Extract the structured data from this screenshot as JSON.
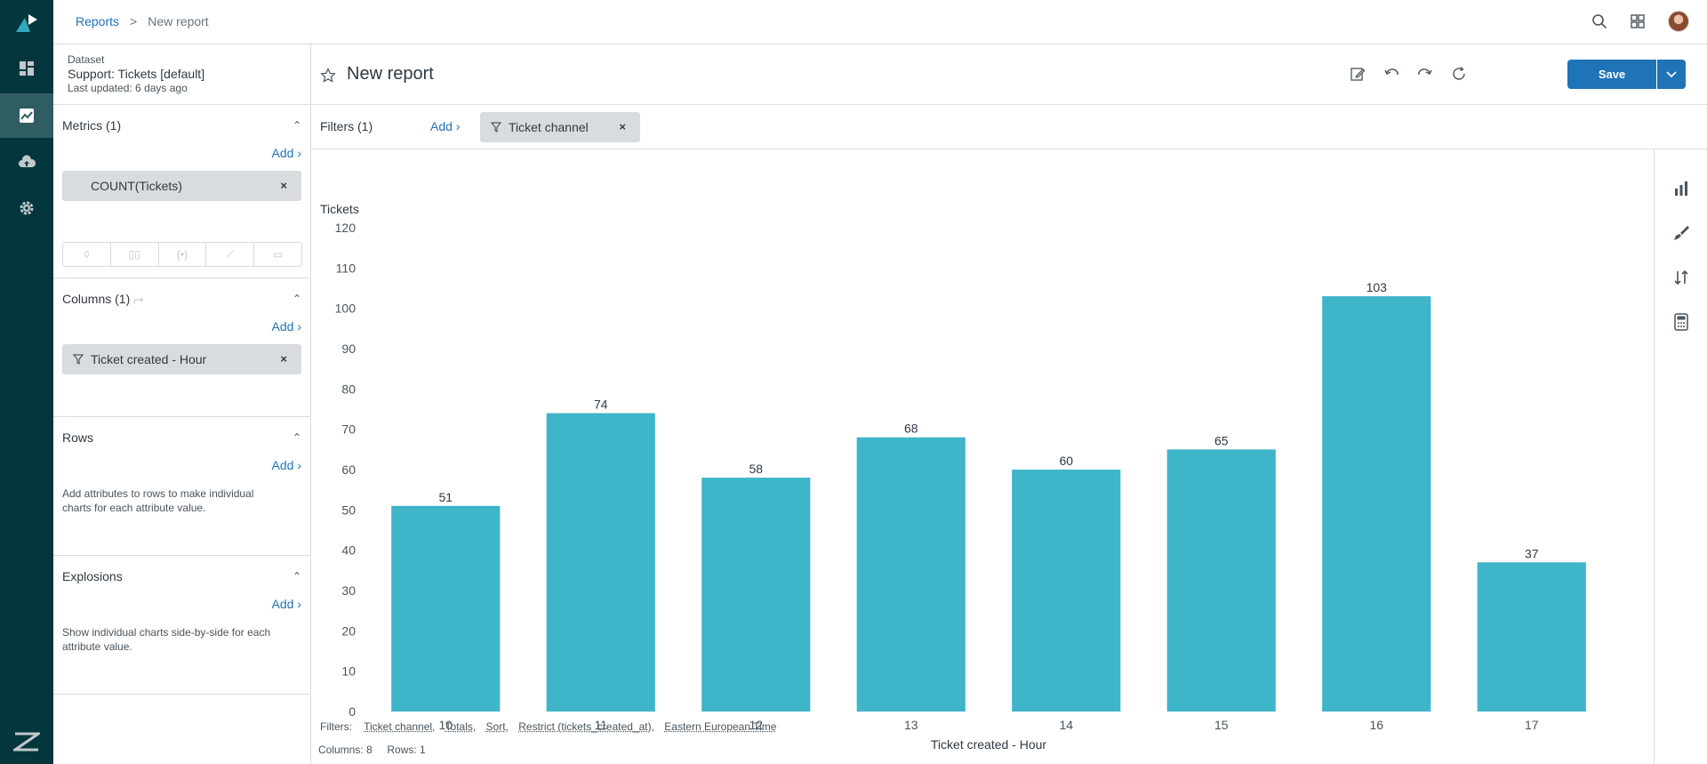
{
  "breadcrumb": {
    "root": "Reports",
    "separator": ">",
    "current": "New report"
  },
  "dataset": {
    "label": "Dataset",
    "name": "Support: Tickets [default]",
    "updated": "Last updated: 6 days ago"
  },
  "metrics": {
    "title": "Metrics (1)",
    "add": "Add ›",
    "pill": "COUNT(Tickets)"
  },
  "columns": {
    "title": "Columns (1)",
    "add": "Add ›",
    "pill": "Ticket created - Hour"
  },
  "rows": {
    "title": "Rows",
    "add": "Add ›",
    "hint": "Add attributes to rows to make individual charts for each attribute value."
  },
  "explosions": {
    "title": "Explosions",
    "add": "Add ›",
    "hint": "Show individual charts side-by-side for each attribute value."
  },
  "report": {
    "title": "New report",
    "save": "Save"
  },
  "filters": {
    "label": "Filters (1)",
    "add": "Add ›",
    "pill": "Ticket channel"
  },
  "footer": {
    "filters_label": "Filters:",
    "links": [
      "Ticket channel,",
      "Totals,",
      "Sort,",
      "Restrict (tickets_created_at),",
      "Eastern European Time"
    ],
    "counts": "Columns: 8     Rows: 1"
  },
  "colors": {
    "bar": "#3eb5c8",
    "accent": "#1f73b7",
    "rail": "#03363d"
  },
  "chart_data": {
    "type": "bar",
    "categories": [
      "10",
      "11",
      "12",
      "13",
      "14",
      "15",
      "16",
      "17"
    ],
    "values": [
      51,
      74,
      58,
      68,
      60,
      65,
      103,
      37
    ],
    "xlabel": "Ticket created - Hour",
    "ylabel": "Tickets",
    "ylim": [
      0,
      120
    ],
    "yticks": [
      0,
      10,
      20,
      30,
      40,
      50,
      60,
      70,
      80,
      90,
      100,
      110,
      120
    ],
    "data_labels": true,
    "grid": false
  }
}
